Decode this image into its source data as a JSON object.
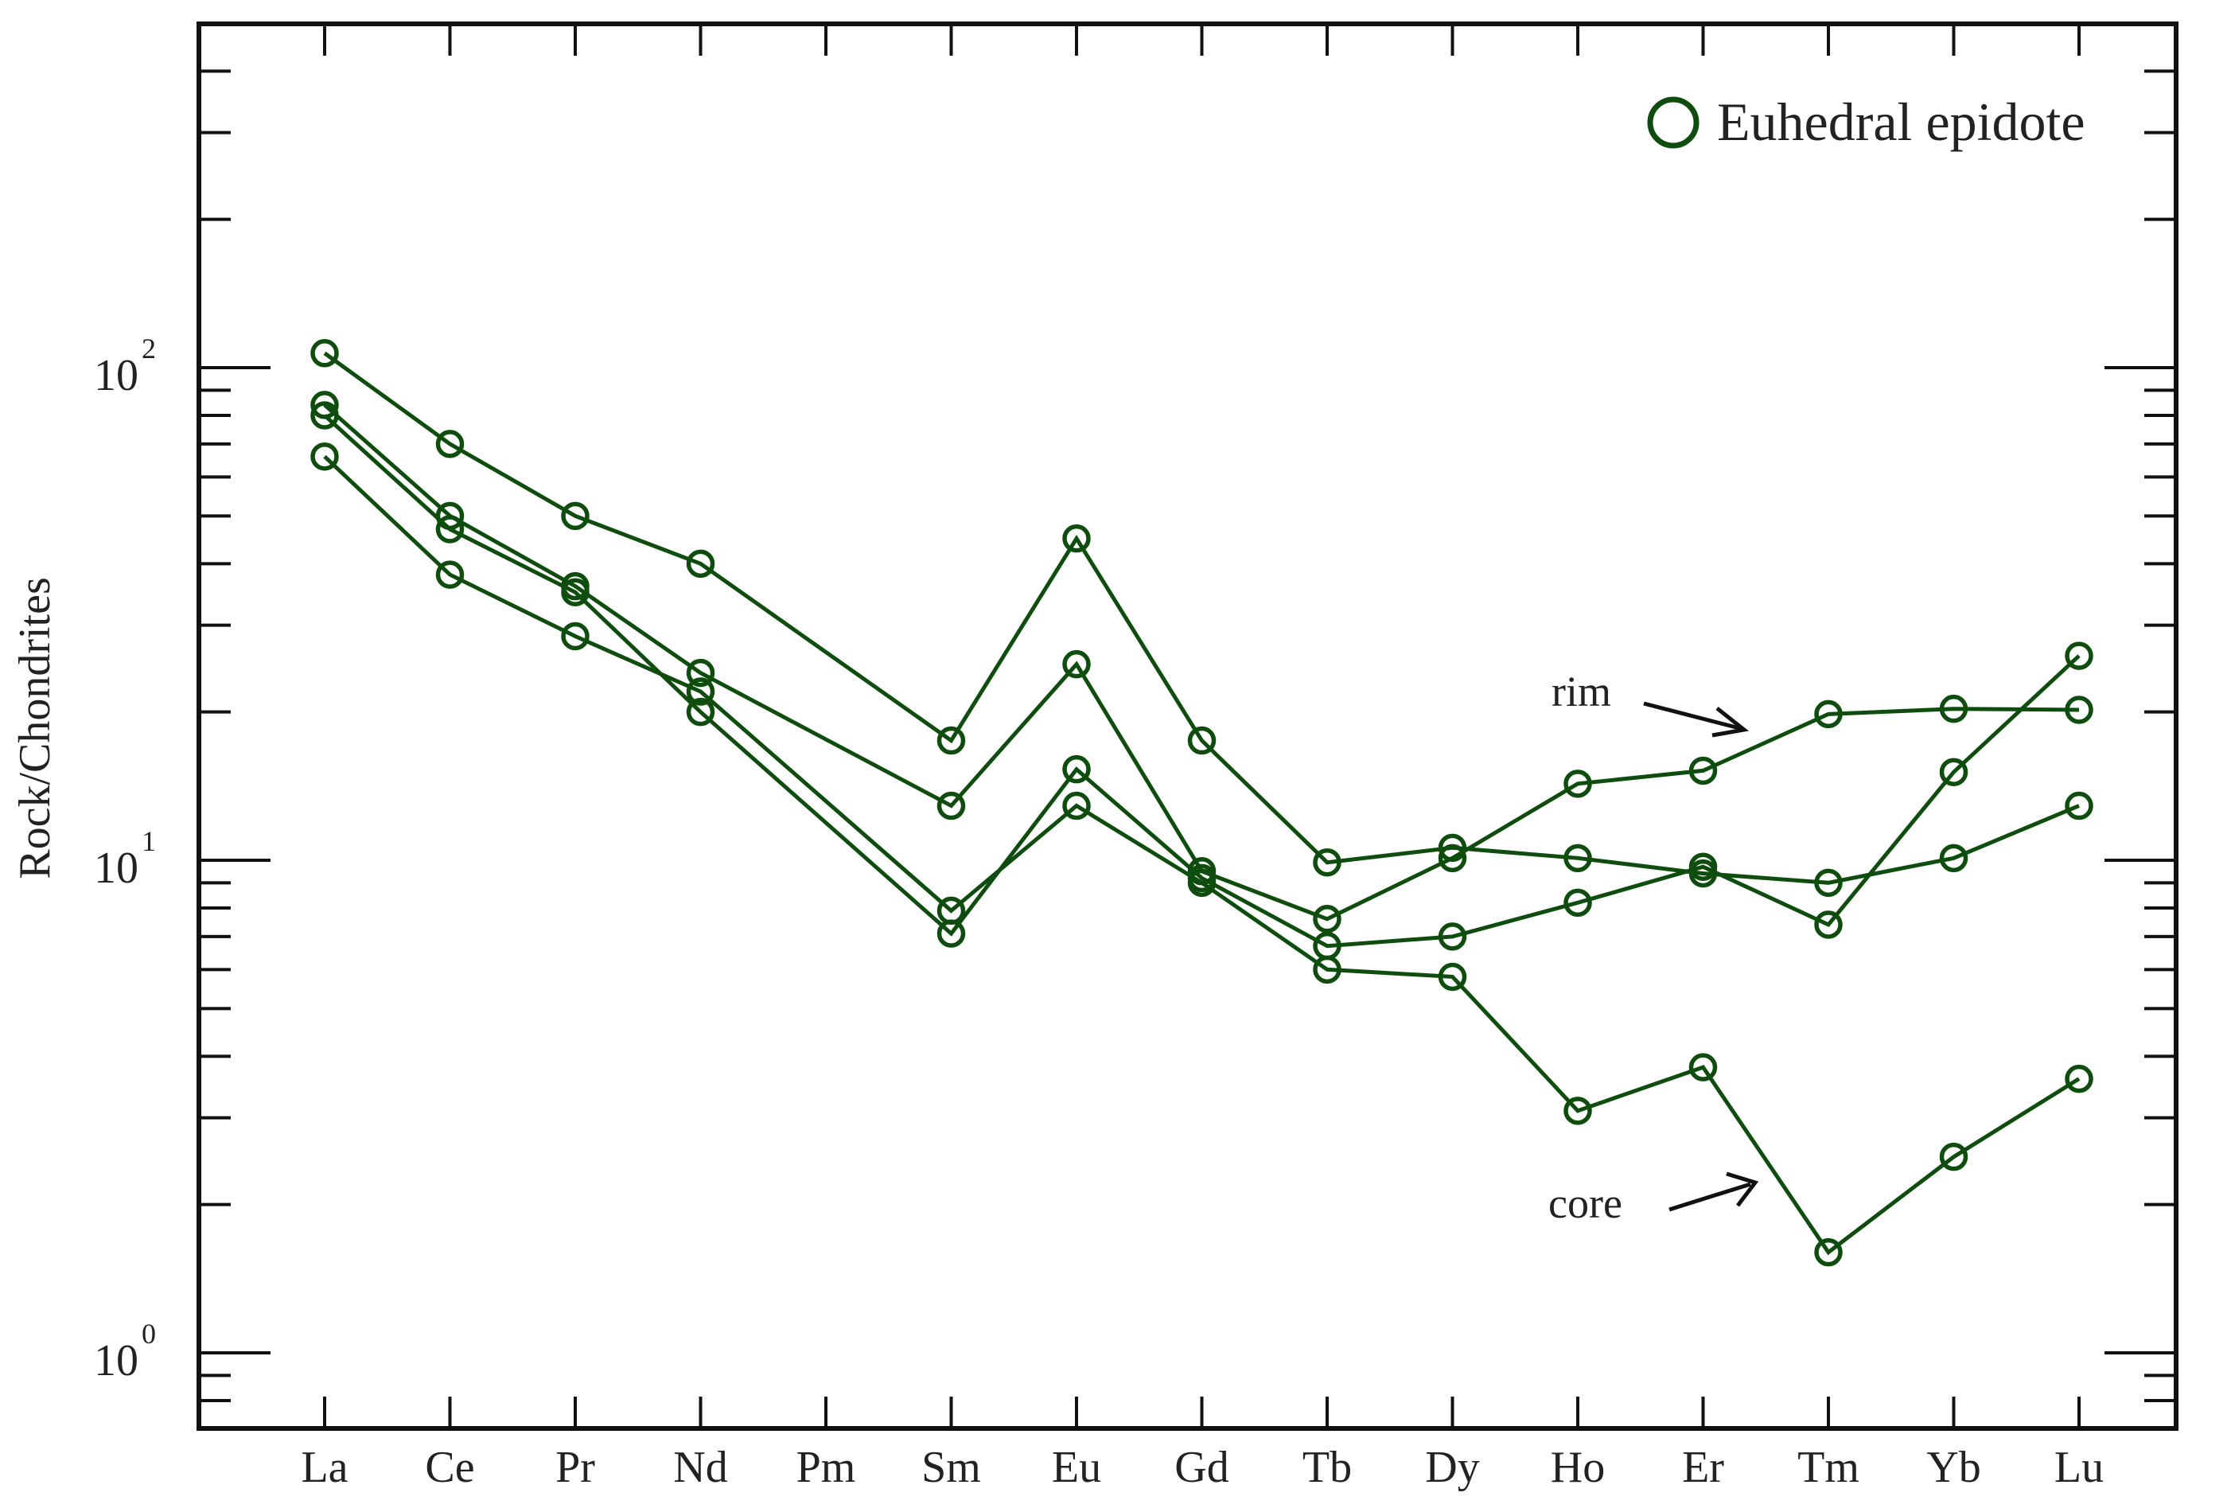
{
  "chart_data": {
    "type": "line",
    "title": "",
    "xlabel": "",
    "ylabel": "Rock/Chondrites",
    "yscale": "log",
    "ylim": [
      0.7,
      500
    ],
    "grid": false,
    "legend": {
      "placement": "top-right",
      "label": "Euhedral epidote",
      "marker": "open circle"
    },
    "series_color": "#0f4d0f",
    "categories": [
      "La",
      "Ce",
      "Pr",
      "Nd",
      "Pm",
      "Sm",
      "Eu",
      "Gd",
      "Tb",
      "Dy",
      "Ho",
      "Er",
      "Tm",
      "Yb",
      "Lu"
    ],
    "yticks": [
      {
        "value": 1,
        "base": "10",
        "exp": "0"
      },
      {
        "value": 10,
        "base": "10",
        "exp": "1"
      },
      {
        "value": 100,
        "base": "10",
        "exp": "2"
      }
    ],
    "series": [
      {
        "values": [
          107,
          70,
          50,
          40,
          null,
          17.5,
          45,
          17.5,
          9.9,
          10.6,
          10.1,
          9.4,
          9.0,
          10.1,
          12.9
        ]
      },
      {
        "values": [
          84,
          50,
          36,
          24,
          null,
          12.9,
          25,
          9.5,
          7.6,
          10.1,
          14.3,
          15.2,
          19.8,
          20.3,
          20.2
        ]
      },
      {
        "values": [
          80,
          47,
          35,
          20,
          null,
          7.1,
          15.3,
          9.2,
          6.7,
          7.0,
          8.2,
          9.7,
          7.4,
          15.1,
          26
        ]
      },
      {
        "values": [
          66,
          38,
          28.5,
          22,
          null,
          7.9,
          12.9,
          9.0,
          6.0,
          5.8,
          3.1,
          3.8,
          1.6,
          2.5,
          3.6
        ]
      }
    ],
    "annotations": [
      {
        "text": "rim",
        "arrow": true
      },
      {
        "text": "core",
        "arrow": true
      }
    ]
  }
}
